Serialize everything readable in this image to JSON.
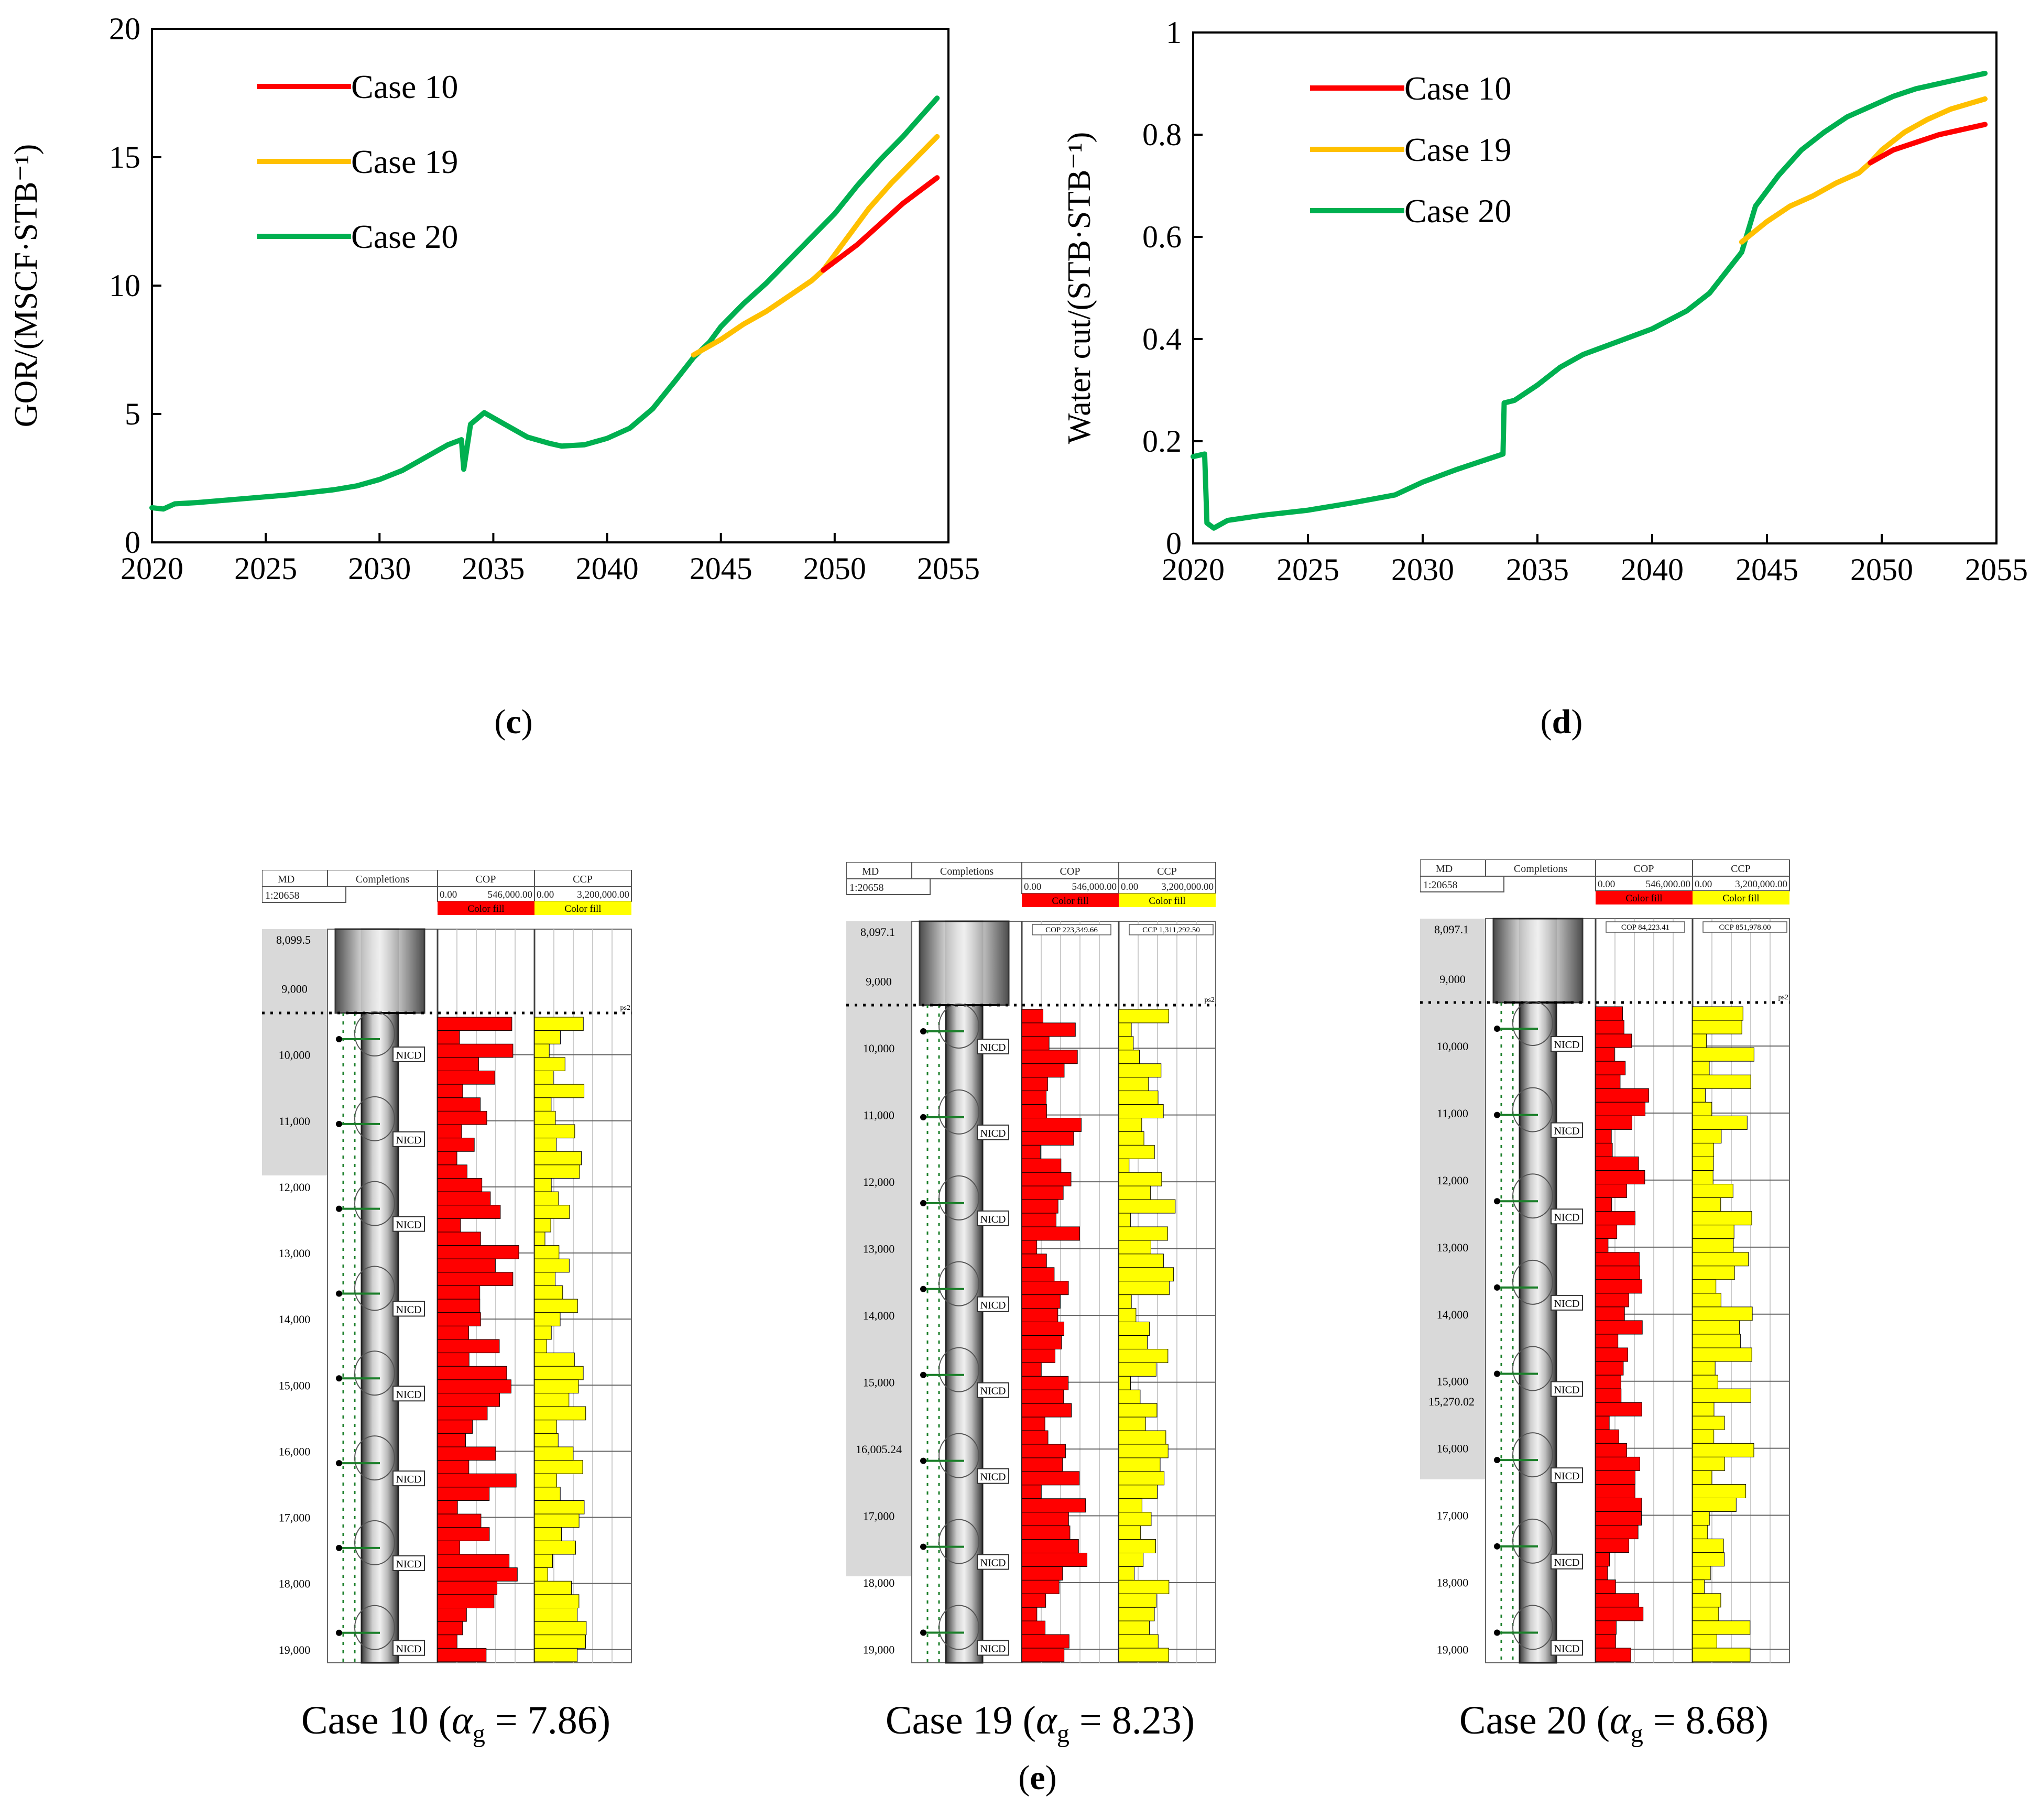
{
  "chart_data": [
    {
      "type": "line",
      "panel": "c",
      "xlabel": "",
      "ylabel": "GOR/(MSCF·STB⁻¹)",
      "xlim": [
        2020,
        2055
      ],
      "ylim": [
        0,
        20
      ],
      "xticks": [
        2020,
        2025,
        2030,
        2035,
        2040,
        2045,
        2050,
        2055
      ],
      "yticks": [
        0,
        5,
        10,
        15,
        20
      ],
      "grid": false,
      "legend_position": "top-left",
      "series": [
        {
          "name": "Case 10",
          "color": "#ff0000",
          "x": [
            2049.5,
            2051,
            2052,
            2053,
            2054.5
          ],
          "y": [
            10.6,
            11.6,
            12.4,
            13.2,
            14.2
          ]
        },
        {
          "name": "Case 19",
          "color": "#ffc000",
          "x": [
            2043.8,
            2045,
            2046,
            2047,
            2048,
            2049,
            2049.5,
            2050.5,
            2051.5,
            2052.5,
            2053.5,
            2054.5
          ],
          "y": [
            7.3,
            7.9,
            8.5,
            9.0,
            9.6,
            10.2,
            10.6,
            11.8,
            13.0,
            14.0,
            14.9,
            15.8
          ]
        },
        {
          "name": "Case 20",
          "color": "#00b050",
          "x": [
            2020,
            2020.5,
            2021,
            2022,
            2024,
            2026,
            2028,
            2029,
            2030,
            2031,
            2032,
            2033,
            2033.6,
            2033.7,
            2034,
            2034.6,
            2035.5,
            2036.5,
            2037.5,
            2038,
            2039,
            2040,
            2041,
            2042,
            2043,
            2043.8,
            2044.5,
            2045,
            2046,
            2047,
            2048,
            2049,
            2050,
            2051,
            2052,
            2053,
            2054.5
          ],
          "y": [
            1.35,
            1.3,
            1.5,
            1.55,
            1.7,
            1.85,
            2.05,
            2.2,
            2.45,
            2.8,
            3.3,
            3.8,
            4.0,
            2.85,
            4.6,
            5.05,
            4.6,
            4.1,
            3.85,
            3.75,
            3.8,
            4.05,
            4.45,
            5.2,
            6.3,
            7.2,
            7.8,
            8.4,
            9.3,
            10.1,
            11.0,
            11.9,
            12.8,
            13.9,
            14.9,
            15.8,
            17.3
          ]
        }
      ]
    },
    {
      "type": "line",
      "panel": "d",
      "xlabel": "",
      "ylabel": "Water cut/(STB·STB⁻¹)",
      "xlim": [
        2020,
        2055
      ],
      "ylim": [
        0,
        1
      ],
      "xticks": [
        2020,
        2025,
        2030,
        2035,
        2040,
        2045,
        2050,
        2055
      ],
      "yticks": [
        0,
        0.2,
        0.4,
        0.6,
        0.8,
        1
      ],
      "grid": false,
      "legend_position": "top-left",
      "series": [
        {
          "name": "Case 10",
          "color": "#ff0000",
          "x": [
            2049.5,
            2050.5,
            2051.5,
            2052.5,
            2053.5,
            2054.5
          ],
          "y": [
            0.745,
            0.77,
            0.785,
            0.8,
            0.81,
            0.82
          ]
        },
        {
          "name": "Case 19",
          "color": "#ffc000",
          "x": [
            2043.9,
            2045,
            2046,
            2047,
            2048,
            2049,
            2049.5,
            2050,
            2051,
            2052,
            2053,
            2054.5
          ],
          "y": [
            0.59,
            0.63,
            0.66,
            0.68,
            0.705,
            0.725,
            0.745,
            0.77,
            0.805,
            0.83,
            0.85,
            0.87
          ]
        },
        {
          "name": "Case 20",
          "color": "#00b050",
          "x": [
            2020,
            2020.5,
            2020.6,
            2020.9,
            2021.5,
            2023,
            2025,
            2027,
            2028.8,
            2030,
            2031.5,
            2033.5,
            2033.55,
            2034,
            2035,
            2036,
            2037,
            2038.5,
            2040,
            2041.5,
            2042.5,
            2043.9,
            2044.5,
            2045.5,
            2046.5,
            2047.5,
            2048.5,
            2049.5,
            2050.5,
            2051.5,
            2052.5,
            2053.5,
            2054.5
          ],
          "y": [
            0.17,
            0.175,
            0.04,
            0.03,
            0.045,
            0.055,
            0.065,
            0.08,
            0.095,
            0.12,
            0.145,
            0.175,
            0.275,
            0.28,
            0.31,
            0.345,
            0.37,
            0.395,
            0.42,
            0.455,
            0.49,
            0.57,
            0.66,
            0.72,
            0.77,
            0.805,
            0.835,
            0.855,
            0.875,
            0.89,
            0.9,
            0.91,
            0.92
          ]
        }
      ]
    }
  ],
  "panel_labels": {
    "c": "c",
    "d": "d",
    "e": "e"
  },
  "well_logs": [
    {
      "id": "case10",
      "caption_name": "Case 10",
      "alpha_value": "7.86",
      "header": {
        "md": "MD",
        "completions": "Completions",
        "cop": "COP",
        "ccp": "CCP",
        "scale": "1:20658",
        "cop_range_min": "0.00",
        "cop_range_max": "546,000.00",
        "ccp_range_min": "0.00",
        "ccp_range_max": "3,200,000.00",
        "fill_label": "Color fill"
      },
      "top_depth": "8,099.5",
      "cop_tag": "",
      "ccp_tag": "",
      "depth_ticks": [
        "9,000",
        "10,000",
        "11,000",
        "12,000",
        "13,000",
        "14,000",
        "15,000",
        "16,000",
        "17,000",
        "18,000",
        "19,000"
      ],
      "extra_depth": "",
      "device_label": "NICD",
      "marker": "ps2"
    },
    {
      "id": "case19",
      "caption_name": "Case 19",
      "alpha_value": "8.23",
      "header": {
        "md": "MD",
        "completions": "Completions",
        "cop": "COP",
        "ccp": "CCP",
        "scale": "1:20658",
        "cop_range_min": "0.00",
        "cop_range_max": "546,000.00",
        "ccp_range_min": "0.00",
        "ccp_range_max": "3,200,000.00",
        "fill_label": "Color fill"
      },
      "top_depth": "8,097.1",
      "cop_tag": "COP 223,349.66",
      "ccp_tag": "CCP 1,311,292.50",
      "depth_ticks": [
        "9,000",
        "10,000",
        "11,000",
        "12,000",
        "13,000",
        "14,000",
        "15,000",
        "16,005.24",
        "17,000",
        "18,000",
        "19,000"
      ],
      "extra_depth": "",
      "device_label": "NICD",
      "marker": "ps2"
    },
    {
      "id": "case20",
      "caption_name": "Case 20",
      "alpha_value": "8.68",
      "header": {
        "md": "MD",
        "completions": "Completions",
        "cop": "COP",
        "ccp": "CCP",
        "scale": "1:20658",
        "cop_range_min": "0.00",
        "cop_range_max": "546,000.00",
        "ccp_range_min": "0.00",
        "ccp_range_max": "3,200,000.00",
        "fill_label": "Color fill"
      },
      "top_depth": "8,097.1",
      "cop_tag": "COP 84,223.41",
      "ccp_tag": "CCP 851,978.00",
      "depth_ticks": [
        "9,000",
        "10,000",
        "11,000",
        "12,000",
        "13,000",
        "14,000",
        "15,000",
        "16,000",
        "17,000",
        "18,000",
        "19,000"
      ],
      "extra_depth": "15,270.02",
      "device_label": "NICD",
      "marker": "ps2"
    }
  ],
  "alpha_symbol": "α",
  "alpha_subscript": "g"
}
